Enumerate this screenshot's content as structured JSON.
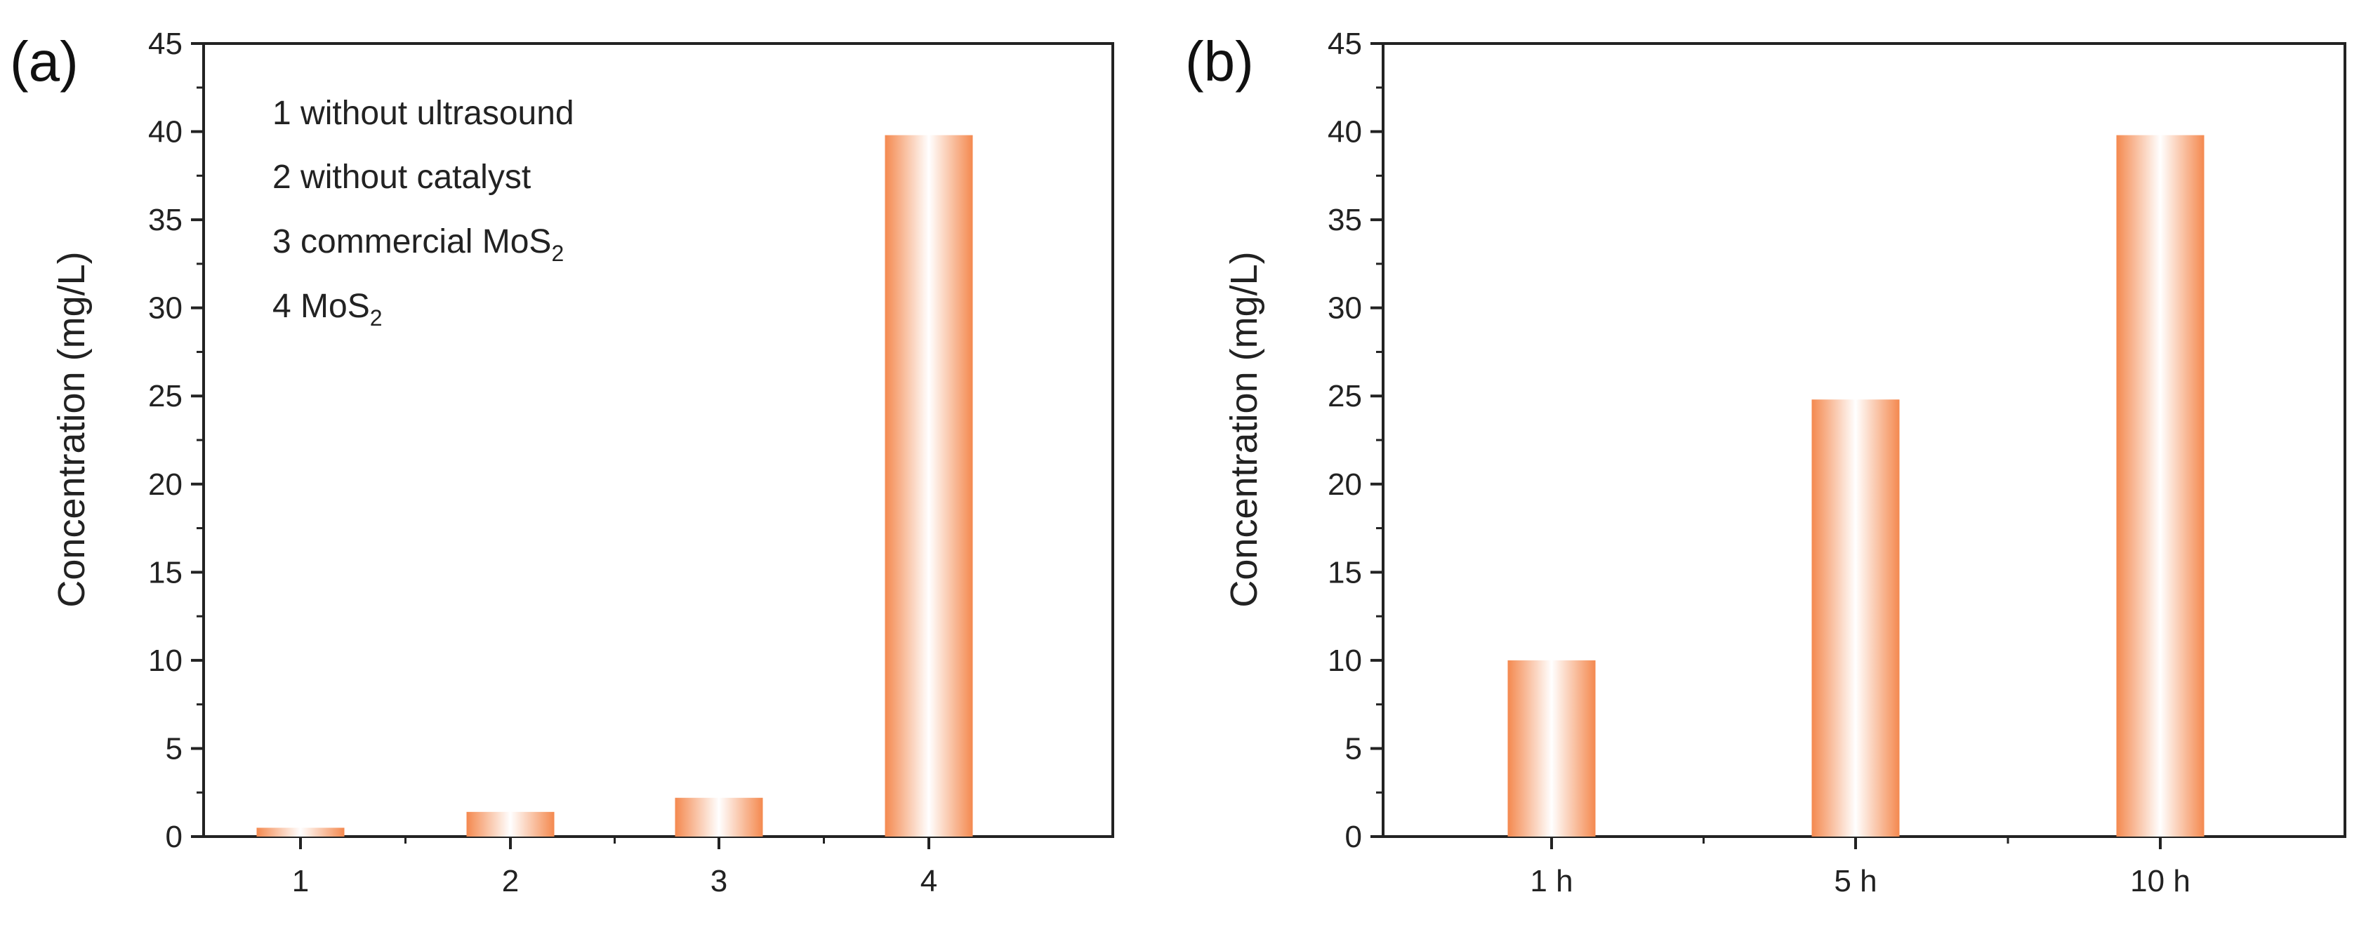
{
  "chart_data": [
    {
      "panel_label": "(a)",
      "type": "bar",
      "categories": [
        "1",
        "2",
        "3",
        "4"
      ],
      "values": [
        0.5,
        1.4,
        2.2,
        39.8
      ],
      "ylabel": "Concentration (mg/L)",
      "xlabel": "",
      "ylim": [
        0,
        45
      ],
      "yticks": [
        "0",
        "5",
        "10",
        "15",
        "20",
        "25",
        "30",
        "35",
        "40",
        "45"
      ],
      "legend": [
        {
          "text": "1 without ultrasound",
          "sub": ""
        },
        {
          "text": "2 without catalyst",
          "sub": ""
        },
        {
          "text": "3 commercial MoS",
          "sub": "2"
        },
        {
          "text": "4 MoS",
          "sub": "2"
        }
      ],
      "legend_position": "top-left",
      "bar_color": "#f4894f",
      "grid": false
    },
    {
      "panel_label": "(b)",
      "type": "bar",
      "categories": [
        "1 h",
        "5 h",
        "10 h"
      ],
      "values": [
        10.0,
        24.8,
        39.8
      ],
      "ylabel": "Concentration (mg/L)",
      "xlabel": "",
      "ylim": [
        0,
        45
      ],
      "yticks": [
        "0",
        "5",
        "10",
        "15",
        "20",
        "25",
        "30",
        "35",
        "40",
        "45"
      ],
      "bar_color": "#f4894f",
      "grid": false
    }
  ]
}
